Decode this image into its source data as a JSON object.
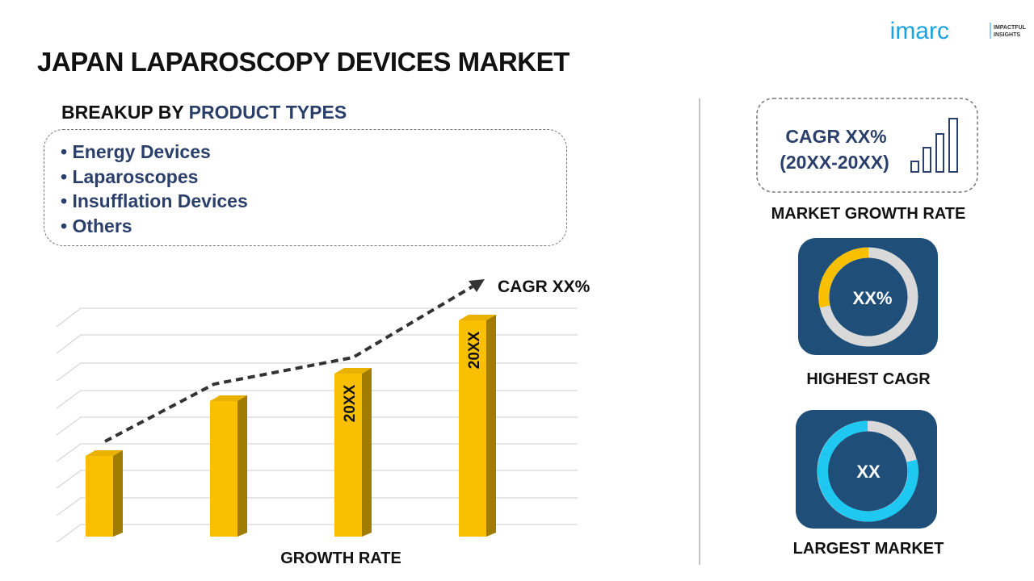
{
  "logo": {
    "name": "imarc",
    "tagline_1": "IMPACTFUL",
    "tagline_2": "INSIGHTS"
  },
  "title": "JAPAN LAPAROSCOPY DEVICES MARKET",
  "breakup": {
    "heading_prefix": "BREAKUP BY",
    "heading_highlight": "PRODUCT TYPES",
    "items": [
      "Energy Devices",
      "Laparoscopes",
      "Insufflation Devices",
      "Others"
    ]
  },
  "growth_chart": {
    "cagr_label": "CAGR XX%",
    "bar_labels": [
      "20XX",
      "20XX"
    ],
    "axis_label": "GROWTH RATE"
  },
  "side": {
    "cagr_box": {
      "line_1": "CAGR XX%",
      "line_2": "(20XX-20XX)"
    },
    "market_growth_rate": "MARKET GROWTH RATE",
    "highest_cagr": {
      "value": "XX%",
      "label": "HIGHEST CAGR"
    },
    "largest_market": {
      "value": "XX",
      "label": "LARGEST MARKET"
    }
  }
}
